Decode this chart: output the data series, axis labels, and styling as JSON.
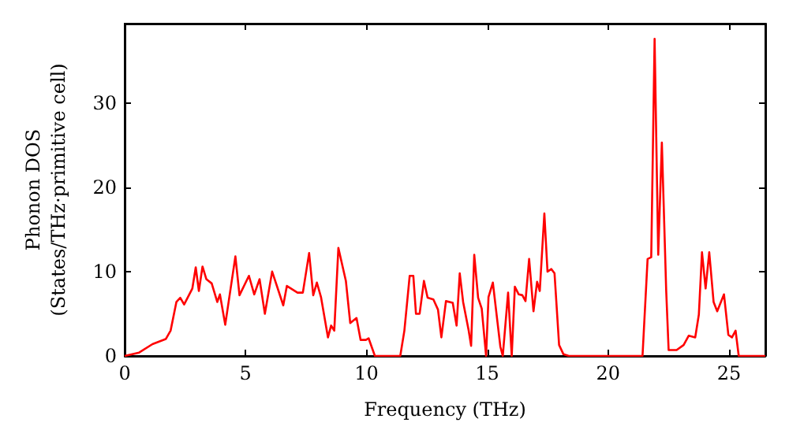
{
  "chart_data": {
    "type": "line",
    "xlabel": "Frequency (THz)",
    "ylabel": "Phonon DOS\n(States/THz·primitive cell)",
    "color": "#ff0000",
    "xlim": [
      0,
      26.5
    ],
    "ylim": [
      0,
      39.4
    ],
    "xticks": [
      0,
      5,
      10,
      15,
      20,
      25
    ],
    "yticks": [
      0,
      10,
      20,
      30
    ],
    "grid": false,
    "marker": "none",
    "x": [
      0,
      0.6,
      1.15,
      1.7,
      1.9,
      2.14,
      2.3,
      2.46,
      2.8,
      2.94,
      3.07,
      3.22,
      3.38,
      3.6,
      3.83,
      3.94,
      4.16,
      4.58,
      4.75,
      5.14,
      5.36,
      5.58,
      5.8,
      6.1,
      6.32,
      6.56,
      6.71,
      7.15,
      7.37,
      7.63,
      7.8,
      7.95,
      8.12,
      8.41,
      8.54,
      8.67,
      8.84,
      9.15,
      9.33,
      9.59,
      9.76,
      9.98,
      10.09,
      10.35,
      11.4,
      11.57,
      11.79,
      11.94,
      12.05,
      12.2,
      12.38,
      12.53,
      12.77,
      12.96,
      13.1,
      13.29,
      13.57,
      13.73,
      13.86,
      14.0,
      14.23,
      14.33,
      14.46,
      14.62,
      14.77,
      14.95,
      15.05,
      15.23,
      15.38,
      15.54,
      15.64,
      15.86,
      16.01,
      16.14,
      16.3,
      16.45,
      16.58,
      16.73,
      16.91,
      17.06,
      17.17,
      17.36,
      17.49,
      17.65,
      17.78,
      17.97,
      18.15,
      18.37,
      21.42,
      21.63,
      21.78,
      21.92,
      22.07,
      22.22,
      22.4,
      22.5,
      22.83,
      23.12,
      23.33,
      23.6,
      23.75,
      23.88,
      24.03,
      24.18,
      24.36,
      24.51,
      24.79,
      24.97,
      25.12,
      25.27,
      25.4,
      26.5
    ],
    "values": [
      0,
      0.4,
      1.4,
      2.0,
      3.0,
      6.4,
      6.9,
      6.1,
      8.0,
      10.5,
      7.7,
      10.6,
      9.1,
      8.6,
      6.4,
      7.3,
      3.7,
      11.8,
      7.2,
      9.5,
      7.3,
      9.1,
      5.0,
      10.0,
      8.1,
      6.0,
      8.3,
      7.5,
      7.5,
      12.2,
      7.2,
      8.7,
      7.0,
      2.2,
      3.6,
      3.0,
      12.8,
      8.9,
      3.9,
      4.5,
      1.9,
      1.9,
      2.1,
      0,
      0,
      3.0,
      9.5,
      9.5,
      5.0,
      5.0,
      8.9,
      6.9,
      6.7,
      5.5,
      2.2,
      6.5,
      6.3,
      3.6,
      9.8,
      6.4,
      3.0,
      1.2,
      12.0,
      6.9,
      5.6,
      0,
      7.0,
      8.7,
      5.0,
      1.1,
      0,
      7.5,
      0,
      8.2,
      7.3,
      7.2,
      6.5,
      11.5,
      5.3,
      8.8,
      7.7,
      16.9,
      10.0,
      10.3,
      9.8,
      1.3,
      0.2,
      0,
      0,
      11.5,
      11.7,
      37.6,
      12.0,
      25.3,
      7.7,
      0.7,
      0.7,
      1.3,
      2.4,
      2.2,
      4.9,
      12.3,
      8.0,
      12.3,
      6.4,
      5.3,
      7.3,
      2.5,
      2.2,
      3.0,
      0,
      0
    ]
  }
}
